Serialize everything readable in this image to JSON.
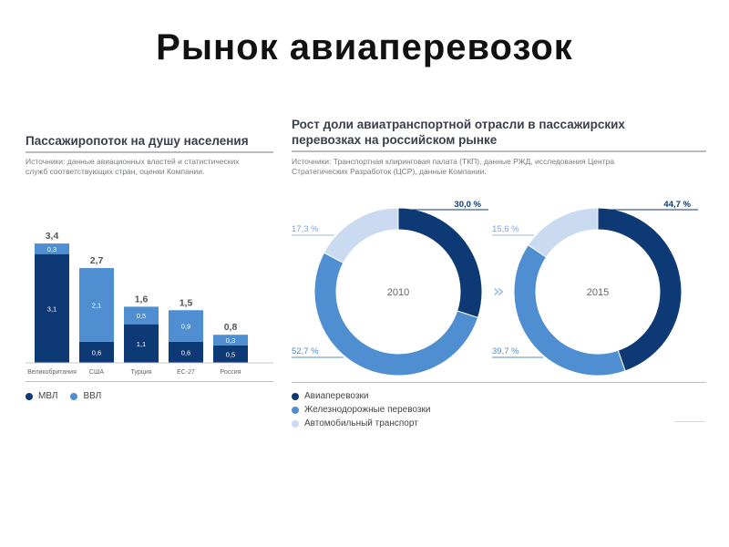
{
  "title": "Рынок авиаперевозок",
  "left_panel": {
    "heading": "Пассажиропоток на душу населения",
    "sources": [
      "Источники: данные авиационных властей и статистических",
      "служб соответствующих стран, оценки Компании."
    ]
  },
  "right_panel": {
    "heading": [
      "Рост доли авиатранспортной отрасли в пассажирских",
      "перевозках на российском рынке"
    ],
    "sources": [
      "Источники: Транспортная клиринговая палата (ТКП), данные РЖД, исследования Центра",
      "Стратегических Разработок (ЦСР), данные Компании."
    ]
  },
  "colors": {
    "mvl": "#0d3a75",
    "vvl": "#4f8ed1",
    "rail": "#4f8ed1",
    "auto": "#c9daf1",
    "air": "#0d3a75"
  },
  "chart_data": [
    {
      "type": "bar",
      "stacked": true,
      "categories": [
        "Великобритания",
        "США",
        "Турция",
        "ЕС-27",
        "Россия"
      ],
      "series": [
        {
          "name": "МВЛ",
          "values": [
            3.1,
            0.6,
            1.1,
            0.6,
            0.5
          ],
          "labels": [
            "3,1",
            "0,6",
            "1,1",
            "0,6",
            "0,5"
          ]
        },
        {
          "name": "ВВЛ",
          "values": [
            0.3,
            2.1,
            0.5,
            0.9,
            0.3
          ],
          "labels": [
            "0,3",
            "2,1",
            "0,5",
            "0,9",
            "0,3"
          ]
        }
      ],
      "totals": [
        "3,4",
        "2,7",
        "1,6",
        "1,5",
        "0,8"
      ],
      "legend": "bottom-left",
      "grid": false
    },
    {
      "type": "pie",
      "donut": true,
      "center_label": "2010",
      "slices": [
        {
          "name": "Авиаперевозки",
          "value": 30.0,
          "label": "30,0 %"
        },
        {
          "name": "Железнодорожные перевозки",
          "value": 52.7,
          "label": "52,7 %"
        },
        {
          "name": "Автомобильный транспорт",
          "value": 17.3,
          "label": "17,3 %"
        }
      ]
    },
    {
      "type": "pie",
      "donut": true,
      "center_label": "2015",
      "slices": [
        {
          "name": "Авиаперевозки",
          "value": 44.7,
          "label": "44,7 %"
        },
        {
          "name": "Железнодорожные перевозки",
          "value": 39.7,
          "label": "39,7 %"
        },
        {
          "name": "Автомобильный транспорт",
          "value": 15.6,
          "label": "15,6 %"
        }
      ]
    }
  ],
  "pie_legend": [
    "Авиаперевозки",
    "Железнодорожные перевозки",
    "Автомобильный транспорт"
  ],
  "arrow_glyph": "»"
}
